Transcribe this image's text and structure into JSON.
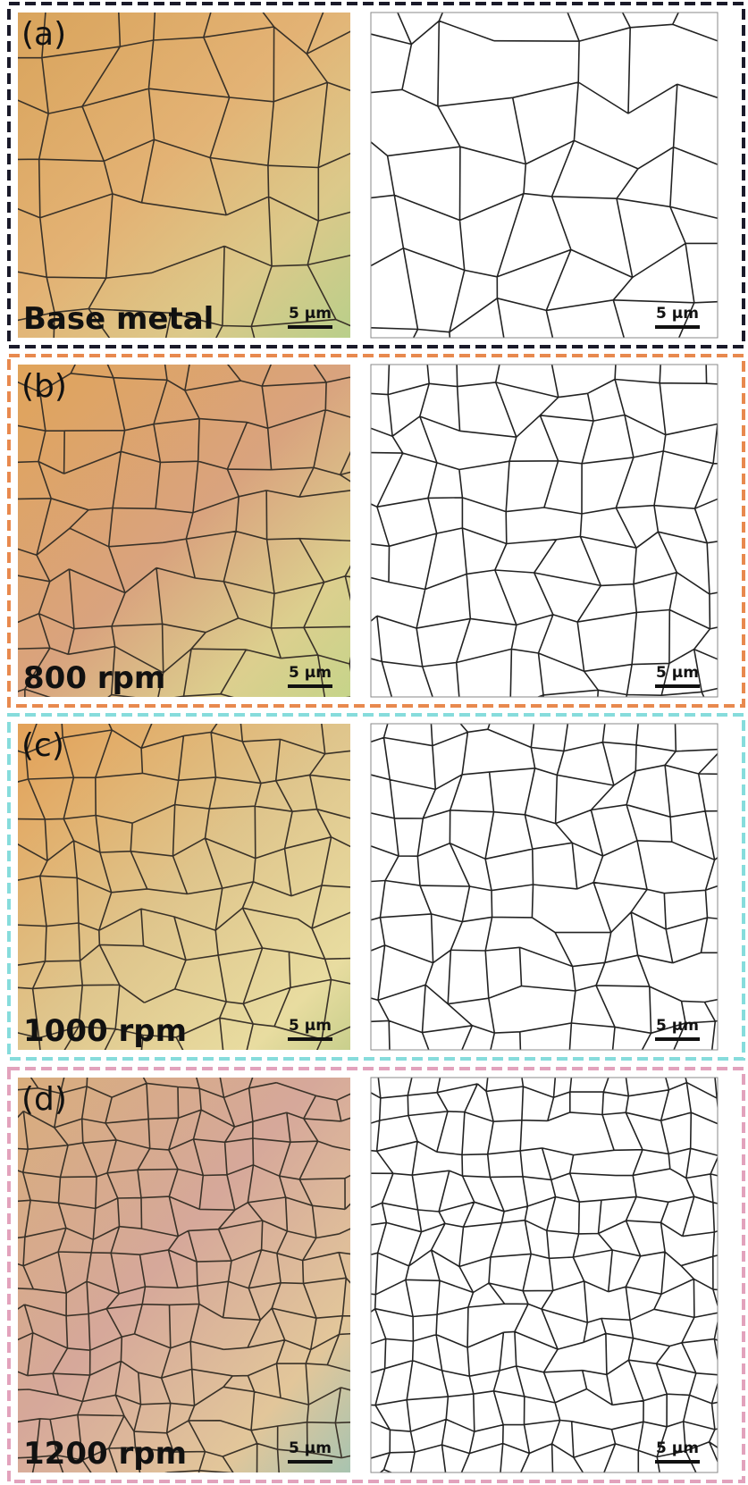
{
  "panels": [
    {
      "label": "(a)",
      "condition": "Base metal",
      "scale_bar_left": "5 µm",
      "scale_bar_right": "5 µm"
    },
    {
      "label": "(b)",
      "condition": "800 rpm",
      "scale_bar_left": "5 µm",
      "scale_bar_right": "5 µm"
    },
    {
      "label": "(c)",
      "condition": "1000 rpm",
      "scale_bar_left": "5 µm",
      "scale_bar_right": "5 µm"
    },
    {
      "label": "(d)",
      "condition": "1200 rpm",
      "scale_bar_left": "5 µm",
      "scale_bar_right": "5 µm"
    }
  ]
}
